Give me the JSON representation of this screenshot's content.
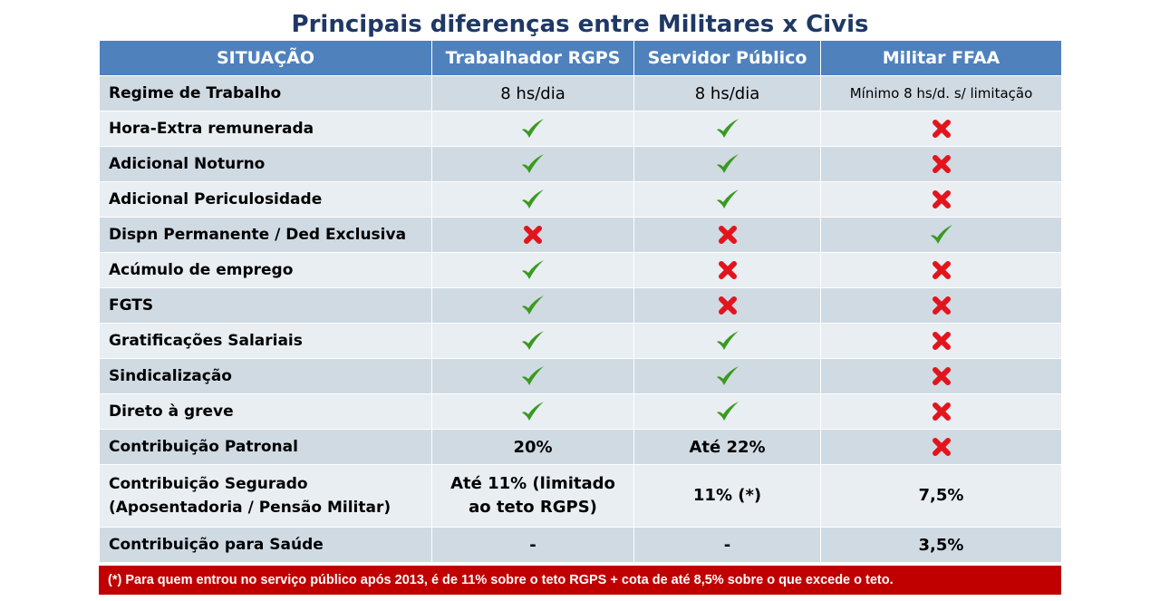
{
  "title": "Principais diferenças entre Militares x Civis",
  "table": {
    "headers": [
      "SITUAÇÃO",
      "Trabalhador RGPS",
      "Servidor Público",
      "Militar FFAA"
    ],
    "rows": [
      {
        "label": "Regime de Trabalho",
        "cells": [
          {
            "type": "text",
            "text": "8 hs/dia",
            "style": "plain"
          },
          {
            "type": "text",
            "text": "8 hs/dia",
            "style": "plain"
          },
          {
            "type": "text",
            "text": "Mínimo 8 hs/d. s/ limitação",
            "style": "plain small"
          }
        ]
      },
      {
        "label": "Hora-Extra remunerada",
        "cells": [
          {
            "type": "check"
          },
          {
            "type": "check"
          },
          {
            "type": "cross"
          }
        ]
      },
      {
        "label": "Adicional Noturno",
        "cells": [
          {
            "type": "check"
          },
          {
            "type": "check"
          },
          {
            "type": "cross"
          }
        ]
      },
      {
        "label": "Adicional Periculosidade",
        "cells": [
          {
            "type": "check"
          },
          {
            "type": "check"
          },
          {
            "type": "cross"
          }
        ]
      },
      {
        "label": "Dispn Permanente / Ded Exclusiva",
        "cells": [
          {
            "type": "cross"
          },
          {
            "type": "cross"
          },
          {
            "type": "check"
          }
        ]
      },
      {
        "label": "Acúmulo de emprego",
        "cells": [
          {
            "type": "check"
          },
          {
            "type": "cross"
          },
          {
            "type": "cross"
          }
        ]
      },
      {
        "label": "FGTS",
        "cells": [
          {
            "type": "check"
          },
          {
            "type": "cross"
          },
          {
            "type": "cross"
          }
        ]
      },
      {
        "label": "Gratificações Salariais",
        "cells": [
          {
            "type": "check"
          },
          {
            "type": "check"
          },
          {
            "type": "cross"
          }
        ]
      },
      {
        "label": "Sindicalização",
        "cells": [
          {
            "type": "check"
          },
          {
            "type": "check"
          },
          {
            "type": "cross"
          }
        ]
      },
      {
        "label": "Direto à greve",
        "cells": [
          {
            "type": "check"
          },
          {
            "type": "check"
          },
          {
            "type": "cross"
          }
        ]
      },
      {
        "label": "Contribuição Patronal",
        "cells": [
          {
            "type": "text",
            "text": "20%",
            "style": "bold"
          },
          {
            "type": "text",
            "text": "Até 22%",
            "style": "bold"
          },
          {
            "type": "cross"
          }
        ]
      },
      {
        "label": "Contribuição Segurado\n(Aposentadoria / Pensão Militar)",
        "tall": true,
        "cells": [
          {
            "type": "text",
            "text": "Até 11% (limitado\nao teto RGPS)",
            "style": "bold"
          },
          {
            "type": "text",
            "text": "11% (*)",
            "style": "bold"
          },
          {
            "type": "text",
            "text": "7,5%",
            "style": "bold"
          }
        ]
      },
      {
        "label": "Contribuição para Saúde",
        "cells": [
          {
            "type": "text",
            "text": "-",
            "style": "bold"
          },
          {
            "type": "text",
            "text": "-",
            "style": "bold"
          },
          {
            "type": "text",
            "text": "3,5%",
            "style": "bold"
          }
        ]
      }
    ]
  },
  "footnote": "(*) Para quem entrou no serviço público após 2013, é de 11% sobre o teto RGPS + cota de até 8,5% sobre o que excede o teto.",
  "icons": {
    "yes": "check-icon",
    "no": "cross-icon"
  },
  "colors": {
    "header": "#4f81bd",
    "title": "#1f3864",
    "footnote": "#c00000",
    "check": "#3a9a1e",
    "cross": "#e3141c"
  }
}
